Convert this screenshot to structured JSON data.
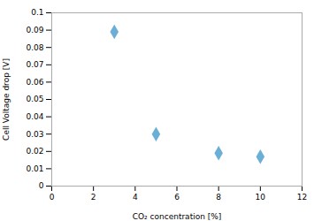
{
  "chart_data": {
    "type": "scatter",
    "x": [
      3,
      5,
      8,
      10
    ],
    "values": [
      0.089,
      0.03,
      0.019,
      0.017
    ],
    "xlabel": "CO₂ concentration [%]",
    "ylabel": "Cell Voltage drop [V]",
    "xlim": [
      0,
      12
    ],
    "ylim": [
      0,
      0.1
    ],
    "xticks": [
      0,
      2,
      4,
      6,
      8,
      10,
      12
    ],
    "yticks": [
      0,
      0.01,
      0.02,
      0.03,
      0.04,
      0.05,
      0.06,
      0.07,
      0.08,
      0.09,
      0.1
    ],
    "color": "#6baed6",
    "marker": "diamond",
    "grid": false
  }
}
